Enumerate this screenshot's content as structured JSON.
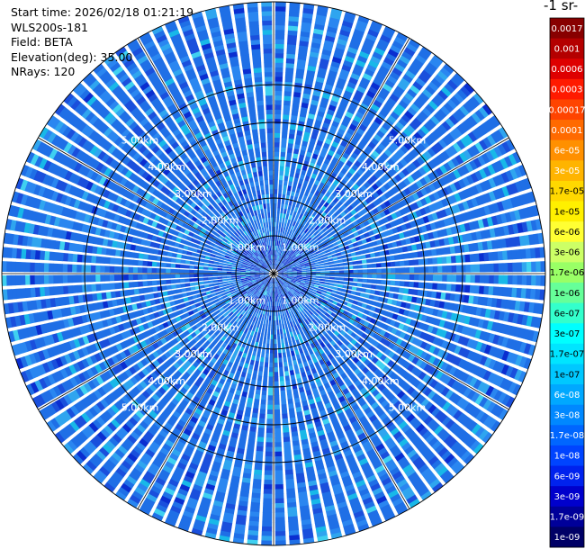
{
  "info": {
    "start_time": "Start time: 2026/02/18 01:21:19",
    "device": "WLS200s-181",
    "field": "Field: BETA",
    "elevation": "Elevation(deg): 35.00",
    "nrays": "NRays: 120"
  },
  "colorbar": {
    "unit_label": "-1 sr-",
    "ticks": [
      "0.0017",
      "0.001",
      "0.0006",
      "0.0003",
      "0.00017",
      "0.0001",
      "6e-05",
      "3e-05",
      "1.7e-05",
      "1e-05",
      "6e-06",
      "3e-06",
      "1.7e-06",
      "1e-06",
      "6e-07",
      "3e-07",
      "1.7e-07",
      "1e-07",
      "6e-08",
      "3e-08",
      "1.7e-08",
      "1e-08",
      "6e-09",
      "3e-09",
      "1.7e-09",
      "1e-09"
    ],
    "colors": [
      "#880000",
      "#b40000",
      "#de0000",
      "#ff1a00",
      "#ff4400",
      "#ff6a00",
      "#ff9000",
      "#ffb400",
      "#ffd800",
      "#fff000",
      "#ffff33",
      "#ccff66",
      "#99ff66",
      "#66ff99",
      "#33ffcc",
      "#00ffff",
      "#00e5ff",
      "#00c8ff",
      "#00a8ff",
      "#0088ff",
      "#0066ff",
      "#0044ff",
      "#0022ee",
      "#0000cc",
      "#000099",
      "#000066"
    ]
  },
  "chart_data": {
    "type": "polar-ppi",
    "field": "BETA",
    "elevation_deg": 35.0,
    "n_rays": 120,
    "range_rings_km": [
      1,
      2,
      3,
      4,
      5
    ],
    "ring_labels": [
      "1.00km",
      "2.00km",
      "3.00km",
      "4.00km",
      "5.00km"
    ],
    "max_range_km": 5.9,
    "dominant_range": [
      "1e-08",
      "6e-08"
    ],
    "colorscale": "log",
    "colorbar_ticks": [
      "0.0017",
      "0.001",
      "0.0006",
      "0.0003",
      "0.00017",
      "0.0001",
      "6e-05",
      "3e-05",
      "1.7e-05",
      "1e-05",
      "6e-06",
      "3e-06",
      "1.7e-06",
      "1e-06",
      "6e-07",
      "3e-07",
      "1.7e-07",
      "1e-07",
      "6e-08",
      "3e-08",
      "1.7e-08",
      "1e-08",
      "6e-09",
      "3e-09",
      "1.7e-09",
      "1e-09"
    ]
  }
}
